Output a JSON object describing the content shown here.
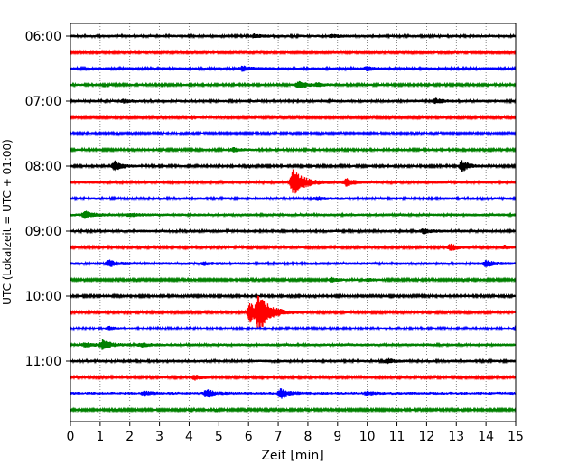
{
  "chart_data": {
    "type": "line",
    "title": "",
    "xlabel": "Zeit  [min]",
    "ylabel": "UTC (Lokalzeit = UTC + 01:00)",
    "xlim": [
      0,
      15
    ],
    "x_ticks": [
      "0",
      "1",
      "2",
      "3",
      "4",
      "5",
      "6",
      "7",
      "8",
      "9",
      "10",
      "11",
      "12",
      "13",
      "14",
      "15"
    ],
    "y_tick_labels": [
      "06:00",
      "07:00",
      "08:00",
      "09:00",
      "10:00",
      "11:00"
    ],
    "grid": "vertical dotted",
    "trace_colors": [
      "#000000",
      "#ff0000",
      "#0000ff",
      "#008000"
    ],
    "series": [
      {
        "time": "06:00",
        "events": [
          [
            6.2,
            0.35
          ],
          [
            8.8,
            0.25
          ]
        ],
        "noise": 0.18
      },
      {
        "time": "06:15",
        "events": [],
        "noise": 0.12
      },
      {
        "time": "06:30",
        "events": [
          [
            5.8,
            0.5
          ],
          [
            10.0,
            0.4
          ]
        ],
        "noise": 0.18
      },
      {
        "time": "06:45",
        "events": [
          [
            7.7,
            0.9
          ],
          [
            8.3,
            0.35
          ]
        ],
        "noise": 0.15
      },
      {
        "time": "07:00",
        "events": [
          [
            1.8,
            0.3
          ],
          [
            12.3,
            0.5
          ]
        ],
        "noise": 0.18
      },
      {
        "time": "07:15",
        "events": [
          [
            4.1,
            0.4
          ]
        ],
        "noise": 0.12
      },
      {
        "time": "07:30",
        "events": [],
        "noise": 0.12
      },
      {
        "time": "07:45",
        "events": [
          [
            5.5,
            0.4
          ]
        ],
        "noise": 0.15
      },
      {
        "time": "08:00",
        "events": [
          [
            1.5,
            1.1
          ],
          [
            13.2,
            1.2
          ]
        ],
        "noise": 0.15
      },
      {
        "time": "08:15",
        "events": [
          [
            7.5,
            3.0
          ],
          [
            9.3,
            0.8
          ]
        ],
        "noise": 0.18
      },
      {
        "time": "08:30",
        "events": [
          [
            8.3,
            0.4
          ]
        ],
        "noise": 0.18
      },
      {
        "time": "08:45",
        "events": [
          [
            0.5,
            0.8
          ],
          [
            2.0,
            0.3
          ]
        ],
        "noise": 0.2
      },
      {
        "time": "09:00",
        "events": [
          [
            11.9,
            0.5
          ]
        ],
        "noise": 0.18
      },
      {
        "time": "09:15",
        "events": [
          [
            12.8,
            0.8
          ],
          [
            14.6,
            0.4
          ]
        ],
        "noise": 0.15
      },
      {
        "time": "09:30",
        "events": [
          [
            1.3,
            0.7
          ],
          [
            14.0,
            0.7
          ],
          [
            4.5,
            0.3
          ]
        ],
        "noise": 0.2
      },
      {
        "time": "09:45",
        "events": [
          [
            8.8,
            0.6
          ],
          [
            10.0,
            0.3
          ]
        ],
        "noise": 0.12
      },
      {
        "time": "10:00",
        "events": [],
        "noise": 0.15
      },
      {
        "time": "10:15",
        "events": [
          [
            6.05,
            2.2
          ],
          [
            6.35,
            3.6
          ]
        ],
        "noise": 0.15
      },
      {
        "time": "10:30",
        "events": [
          [
            1.3,
            0.5
          ],
          [
            15.0,
            0.5
          ]
        ],
        "noise": 0.15
      },
      {
        "time": "10:45",
        "events": [
          [
            1.1,
            1.1
          ],
          [
            0.5,
            0.5
          ],
          [
            2.4,
            0.4
          ]
        ],
        "noise": 0.2
      },
      {
        "time": "11:00",
        "events": [
          [
            10.7,
            0.5
          ]
        ],
        "noise": 0.18
      },
      {
        "time": "11:15",
        "events": [
          [
            4.2,
            0.5
          ]
        ],
        "noise": 0.15
      },
      {
        "time": "11:30",
        "events": [
          [
            4.6,
            0.8
          ],
          [
            7.1,
            1.0
          ],
          [
            2.5,
            0.4
          ],
          [
            10.0,
            0.4
          ]
        ],
        "noise": 0.3
      },
      {
        "time": "11:45",
        "events": [],
        "noise": 0.12
      }
    ]
  }
}
